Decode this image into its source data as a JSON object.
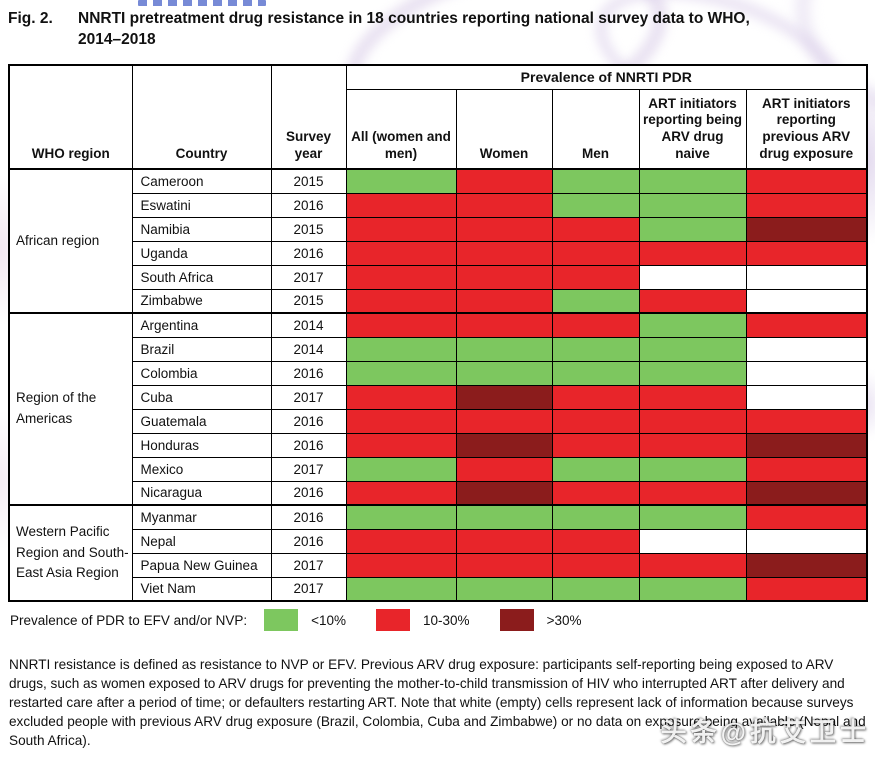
{
  "header": {
    "fig_label": "Fig. 2."
  },
  "chart_data": {
    "type": "heatmap",
    "title": "NNRTI pretreatment drug resistance in 18 countries reporting national survey data to WHO, 2014–2018",
    "group_header": "Prevalence of NNRTI PDR",
    "row_headers": {
      "who_region": "WHO region",
      "country": "Country",
      "survey_year": "Survey year"
    },
    "columns": [
      "All (women and men)",
      "Women",
      "Men",
      "ART initiators reporting being ARV drug naive",
      "ART initiators reporting previous ARV drug exposure"
    ],
    "legend_label": "Prevalence of PDR to EFV and/or NVP:",
    "categories_legend": [
      {
        "label": "<10%",
        "color": "#7dc75f"
      },
      {
        "label": "10-30%",
        "color": "#e8252a"
      },
      {
        "label": ">30%",
        "color": "#8b1c1c"
      }
    ],
    "no_data": {
      "label": "no data",
      "color": "#ffffff"
    },
    "regions": [
      {
        "name": "African region",
        "rows": [
          {
            "country": "Cameroon",
            "year": "2015",
            "values": [
              "<10%",
              "10-30%",
              "<10%",
              "<10%",
              "10-30%"
            ]
          },
          {
            "country": "Eswatini",
            "year": "2016",
            "values": [
              "10-30%",
              "10-30%",
              "<10%",
              "<10%",
              "10-30%"
            ]
          },
          {
            "country": "Namibia",
            "year": "2015",
            "values": [
              "10-30%",
              "10-30%",
              "10-30%",
              "<10%",
              ">30%"
            ]
          },
          {
            "country": "Uganda",
            "year": "2016",
            "values": [
              "10-30%",
              "10-30%",
              "10-30%",
              "10-30%",
              "10-30%"
            ]
          },
          {
            "country": "South Africa",
            "year": "2017",
            "values": [
              "10-30%",
              "10-30%",
              "10-30%",
              "no data",
              "no data"
            ]
          },
          {
            "country": "Zimbabwe",
            "year": "2015",
            "values": [
              "10-30%",
              "10-30%",
              "<10%",
              "10-30%",
              "no data"
            ]
          }
        ]
      },
      {
        "name": "Region of the Americas",
        "rows": [
          {
            "country": "Argentina",
            "year": "2014",
            "values": [
              "10-30%",
              "10-30%",
              "10-30%",
              "<10%",
              "10-30%"
            ]
          },
          {
            "country": "Brazil",
            "year": "2014",
            "values": [
              "<10%",
              "<10%",
              "<10%",
              "<10%",
              "no data"
            ]
          },
          {
            "country": "Colombia",
            "year": "2016",
            "values": [
              "<10%",
              "<10%",
              "<10%",
              "<10%",
              "no data"
            ]
          },
          {
            "country": "Cuba",
            "year": "2017",
            "values": [
              "10-30%",
              ">30%",
              "10-30%",
              "10-30%",
              "no data"
            ]
          },
          {
            "country": "Guatemala",
            "year": "2016",
            "values": [
              "10-30%",
              "10-30%",
              "10-30%",
              "10-30%",
              "10-30%"
            ]
          },
          {
            "country": "Honduras",
            "year": "2016",
            "values": [
              "10-30%",
              ">30%",
              "10-30%",
              "10-30%",
              ">30%"
            ]
          },
          {
            "country": "Mexico",
            "year": "2017",
            "values": [
              "<10%",
              "10-30%",
              "<10%",
              "<10%",
              "10-30%"
            ]
          },
          {
            "country": "Nicaragua",
            "year": "2016",
            "values": [
              "10-30%",
              ">30%",
              "10-30%",
              "10-30%",
              ">30%"
            ]
          }
        ]
      },
      {
        "name": "Western Pacific Region and South-East Asia Region",
        "rows": [
          {
            "country": "Myanmar",
            "year": "2016",
            "values": [
              "<10%",
              "<10%",
              "<10%",
              "<10%",
              "10-30%"
            ]
          },
          {
            "country": "Nepal",
            "year": "2016",
            "values": [
              "10-30%",
              "10-30%",
              "10-30%",
              "no data",
              "no data"
            ]
          },
          {
            "country": "Papua New Guinea",
            "year": "2017",
            "values": [
              "10-30%",
              "10-30%",
              "10-30%",
              "10-30%",
              ">30%"
            ]
          },
          {
            "country": "Viet Nam",
            "year": "2017",
            "values": [
              "<10%",
              "<10%",
              "<10%",
              "<10%",
              "10-30%"
            ]
          }
        ]
      }
    ]
  },
  "footnote": "NNRTI resistance is defined as resistance to NVP or EFV. Previous ARV drug exposure: participants self-reporting being exposed to ARV drugs, such as women exposed to ARV drugs for preventing the mother-to-child transmission of HIV who interrupted ART after delivery and restarted care after a period of time; or defaulters restarting ART. Note that white (empty) cells represent lack of information because surveys excluded people with previous ARV drug exposure (Brazil, Colombia, Cuba and Zimbabwe) or no data on exposure being available (Nepal and South Africa).",
  "watermark": {
    "text": "头条@抗艾卫士"
  }
}
